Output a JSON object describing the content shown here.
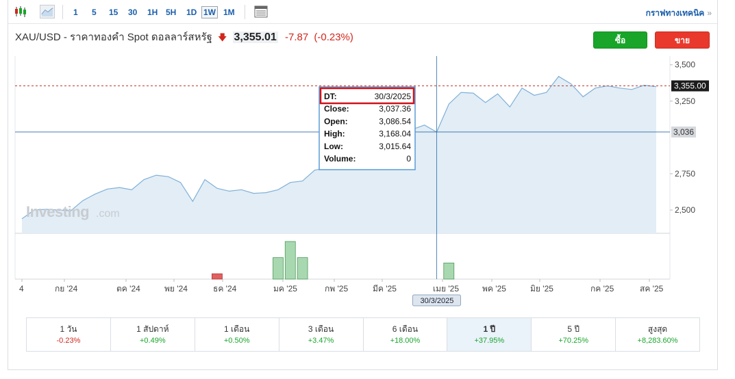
{
  "toolbar": {
    "timeframes": [
      "1",
      "5",
      "15",
      "30",
      "1H",
      "5H",
      "1D",
      "1W",
      "1M"
    ],
    "active_timeframe": "1W",
    "tech_link": "กราฟทางเทคนิค",
    "tech_link_arrow": "»"
  },
  "header": {
    "pair": "XAU/USD - ราคาทองคำ Spot ดอลลาร์สหรัฐ",
    "price": "3,355.01",
    "change": "-7.87",
    "change_pct": "(-0.23%)",
    "buy_label": "ซื้อ",
    "sell_label": "ขาย"
  },
  "chart_data": {
    "type": "area",
    "watermark": "Investing.com",
    "x_tick_labels": [
      "4",
      "กย '24",
      "ตค '24",
      "พย '24",
      "ธค '24",
      "มค '25",
      "กพ '25",
      "มีค '25",
      "เมย '25",
      "พค '25",
      "มิย '25",
      "กค '25",
      "สค '25"
    ],
    "y_tick_labels": [
      "3,500",
      "3,250",
      "3,036",
      "2,750",
      "2,500"
    ],
    "y_ticks": [
      3500,
      3250,
      2750,
      2500
    ],
    "ylim": [
      2340,
      3560
    ],
    "current_price_label": "3,355.00",
    "current_price": 3355,
    "crosshair_price_label": "3,036",
    "crosshair_price": 3037.36,
    "crosshair_date_label": "30/3/2025",
    "close": [
      2440,
      2500,
      2505,
      2500,
      2495,
      2565,
      2610,
      2645,
      2655,
      2640,
      2710,
      2740,
      2730,
      2690,
      2560,
      2710,
      2650,
      2630,
      2640,
      2615,
      2620,
      2640,
      2690,
      2700,
      2775,
      2790,
      2860,
      2890,
      2920,
      2940,
      2985,
      3010,
      3055,
      3085,
      3037.36,
      3230,
      3310,
      3305,
      3240,
      3300,
      3210,
      3340,
      3290,
      3310,
      3420,
      3370,
      3280,
      3340,
      3355,
      3340,
      3330,
      3360,
      3350
    ],
    "volume_bars": [
      {
        "index": 16,
        "value": 1,
        "direction": "down"
      },
      {
        "index": 21,
        "value": 4,
        "direction": "up"
      },
      {
        "index": 22,
        "value": 7,
        "direction": "up"
      },
      {
        "index": 23,
        "value": 4,
        "direction": "up"
      },
      {
        "index": 35,
        "value": 3,
        "direction": "up"
      }
    ],
    "tooltip": {
      "rows": [
        {
          "label": "DT:",
          "value": "30/3/2025"
        },
        {
          "label": "Close:",
          "value": "3,037.36"
        },
        {
          "label": "Open:",
          "value": "3,086.54"
        },
        {
          "label": "High:",
          "value": "3,168.04"
        },
        {
          "label": "Low:",
          "value": "3,015.64"
        },
        {
          "label": "Volume:",
          "value": "0"
        }
      ]
    },
    "colors": {
      "line": "#7fb0d8",
      "fill": "#e2edf6",
      "price_line": "#c0392b",
      "crosshair": "#2b6aa8",
      "vol_up": "#a8d8b0",
      "vol_down": "#e06060",
      "highlight_box": "#d0121b"
    }
  },
  "performance": [
    {
      "label": "1 วัน",
      "value": "-0.23%",
      "dir": "neg",
      "active": false
    },
    {
      "label": "1 สัปดาห์",
      "value": "+0.49%",
      "dir": "pos",
      "active": false
    },
    {
      "label": "1 เดือน",
      "value": "+0.50%",
      "dir": "pos",
      "active": false
    },
    {
      "label": "3 เดือน",
      "value": "+3.47%",
      "dir": "pos",
      "active": false
    },
    {
      "label": "6 เดือน",
      "value": "+18.00%",
      "dir": "pos",
      "active": false
    },
    {
      "label": "1 ปี",
      "value": "+37.95%",
      "dir": "pos",
      "active": true
    },
    {
      "label": "5 ปี",
      "value": "+70.25%",
      "dir": "pos",
      "active": false
    },
    {
      "label": "สูงสุด",
      "value": "+8,283.60%",
      "dir": "pos",
      "active": false
    }
  ]
}
